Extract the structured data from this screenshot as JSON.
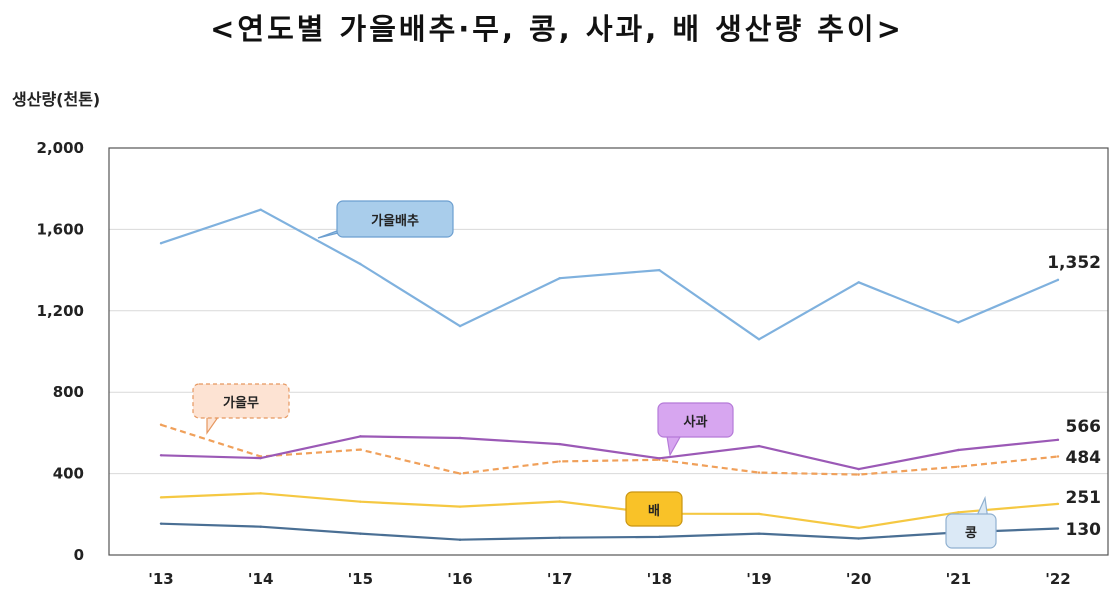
{
  "chart_data": {
    "type": "line",
    "title": "<연도별 가을배추·무, 콩, 사과, 배 생산량 추이>",
    "ylabel": "생산량(천톤)",
    "xlabel": "",
    "ylim": [
      0,
      2000
    ],
    "yticks": [
      0,
      400,
      800,
      1200,
      1600,
      2000
    ],
    "ytick_labels": [
      "0",
      "400",
      "800",
      "1,200",
      "1,600",
      "2,000"
    ],
    "x": [
      "'13",
      "'14",
      "'15",
      "'16",
      "'17",
      "'18",
      "'19",
      "'20",
      "'21",
      "'22"
    ],
    "grid": true,
    "series": [
      {
        "key": "cabbage",
        "name": "가을배추",
        "color": "#7fb1de",
        "dash": false,
        "values": [
          1532,
          1697,
          1430,
          1125,
          1360,
          1400,
          1060,
          1340,
          1143,
          1352
        ],
        "end_label": "1,352"
      },
      {
        "key": "radish",
        "name": "가을무",
        "color": "#f0a05a",
        "dash": true,
        "values": [
          640,
          484,
          518,
          400,
          460,
          468,
          405,
          395,
          434,
          484
        ],
        "end_label": "484"
      },
      {
        "key": "apple",
        "name": "사과",
        "color": "#9b59b6",
        "dash": false,
        "values": [
          490,
          476,
          583,
          575,
          545,
          475,
          535,
          422,
          516,
          566
        ],
        "end_label": "566"
      },
      {
        "key": "pear",
        "name": "배",
        "color": "#f5c842",
        "dash": false,
        "values": [
          283,
          303,
          262,
          238,
          263,
          203,
          202,
          133,
          210,
          251
        ],
        "end_label": "251"
      },
      {
        "key": "soybean",
        "name": "콩",
        "color": "#4a6f94",
        "dash": false,
        "values": [
          154,
          139,
          105,
          75,
          85,
          89,
          105,
          81,
          111,
          130
        ],
        "end_label": "130"
      }
    ]
  }
}
